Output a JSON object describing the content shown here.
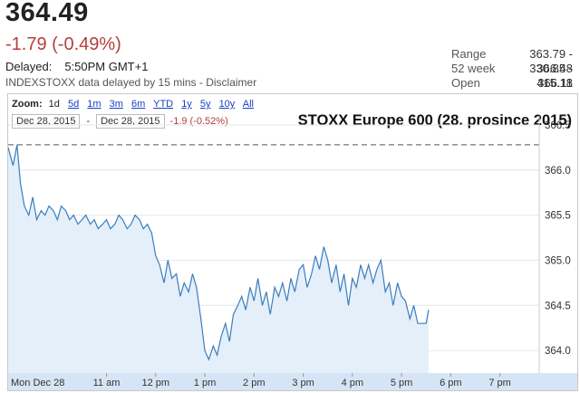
{
  "quote": {
    "price": "364.49",
    "change": "-1.79 (-0.49%)",
    "delayed_label": "Delayed:",
    "delayed_time": "5:50PM GMT+1",
    "source": "INDEXSTOXX data delayed by 15 mins - Disclaimer"
  },
  "stats": [
    {
      "label": "Range",
      "value": "363.79 - 366.48"
    },
    {
      "label": "52 week",
      "value": "330.85 - 415.18"
    },
    {
      "label": "Open",
      "value": "366.11"
    }
  ],
  "zoom": {
    "label": "Zoom:",
    "options": [
      "1d",
      "5d",
      "1m",
      "3m",
      "6m",
      "YTD",
      "1y",
      "5y",
      "10y",
      "All"
    ],
    "selected": "1d"
  },
  "range_bar": {
    "from": "Dec 28, 2015",
    "separator": "-",
    "to": "Dec 28, 2015",
    "change": "-1.9 (-0.52%)"
  },
  "colors": {
    "line": "#3b7dbf",
    "fill": "#e4eff9",
    "negative": "#b3403a",
    "xaxis_bar": "#d6e5f5"
  },
  "chart_data": {
    "type": "area",
    "title": "STOXX Europe 600 (28. prosince 2015)",
    "xlabel": "",
    "ylabel": "",
    "x_tick_labels": [
      "Mon Dec 28",
      "11 am",
      "12 pm",
      "1 pm",
      "2 pm",
      "3 pm",
      "4 pm",
      "5 pm",
      "6 pm",
      "7 pm"
    ],
    "x_ticks_hours": [
      9,
      11,
      12,
      13,
      14,
      15,
      16,
      17,
      18,
      19
    ],
    "y_tick_labels": [
      "364.0",
      "364.5",
      "365.0",
      "365.5",
      "366.0",
      "366.5"
    ],
    "y_ticks": [
      364.0,
      364.5,
      365.0,
      365.5,
      366.0,
      366.5
    ],
    "xlim_hours": [
      9.0,
      19.8
    ],
    "ylim": [
      363.75,
      366.6
    ],
    "previous_close": 366.28,
    "series": [
      {
        "x_hours": [
          9.0,
          9.1,
          9.18,
          9.25,
          9.33,
          9.42,
          9.5,
          9.58,
          9.67,
          9.75,
          9.83,
          9.92,
          10.0,
          10.08,
          10.17,
          10.25,
          10.33,
          10.42,
          10.5,
          10.58,
          10.67,
          10.75,
          10.83,
          10.92,
          11.0,
          11.08,
          11.17,
          11.25,
          11.33,
          11.42,
          11.5,
          11.58,
          11.67,
          11.75,
          11.83,
          11.92,
          12.0,
          12.08,
          12.17,
          12.25,
          12.33,
          12.42,
          12.5,
          12.58,
          12.67,
          12.75,
          12.83,
          12.92,
          13.0,
          13.08,
          13.17,
          13.25,
          13.33,
          13.42,
          13.5,
          13.58,
          13.67,
          13.75,
          13.83,
          13.92,
          14.0,
          14.08,
          14.17,
          14.25,
          14.33,
          14.42,
          14.5,
          14.58,
          14.67,
          14.75,
          14.83,
          14.92,
          15.0,
          15.08,
          15.17,
          15.25,
          15.33,
          15.42,
          15.5,
          15.58,
          15.67,
          15.75,
          15.83,
          15.92,
          16.0,
          16.08,
          16.17,
          16.25,
          16.33,
          16.42,
          16.5,
          16.58,
          16.67,
          16.75,
          16.83,
          16.92,
          17.0,
          17.08,
          17.17,
          17.25,
          17.33,
          17.42,
          17.5,
          17.55
        ],
        "values": [
          366.25,
          366.05,
          366.28,
          365.85,
          365.6,
          365.5,
          365.7,
          365.45,
          365.55,
          365.5,
          365.6,
          365.55,
          365.45,
          365.6,
          365.55,
          365.45,
          365.5,
          365.4,
          365.45,
          365.5,
          365.4,
          365.45,
          365.35,
          365.4,
          365.45,
          365.35,
          365.4,
          365.5,
          365.45,
          365.35,
          365.4,
          365.5,
          365.45,
          365.35,
          365.4,
          365.3,
          365.05,
          364.95,
          364.75,
          365.0,
          364.8,
          364.85,
          364.6,
          364.75,
          364.65,
          364.85,
          364.7,
          364.35,
          364.0,
          363.9,
          364.05,
          363.95,
          364.15,
          364.3,
          364.1,
          364.4,
          364.5,
          364.6,
          364.45,
          364.7,
          364.55,
          364.8,
          364.5,
          364.65,
          364.4,
          364.7,
          364.6,
          364.75,
          364.55,
          364.8,
          364.65,
          364.9,
          364.95,
          364.7,
          364.85,
          365.05,
          364.9,
          365.15,
          365.0,
          364.75,
          364.95,
          364.65,
          364.85,
          364.5,
          364.8,
          364.7,
          364.95,
          364.8,
          364.95,
          364.75,
          364.9,
          365.0,
          364.65,
          364.75,
          364.5,
          364.75,
          364.6,
          364.55,
          364.35,
          364.5,
          364.3,
          364.3,
          364.3,
          364.45
        ]
      }
    ]
  }
}
